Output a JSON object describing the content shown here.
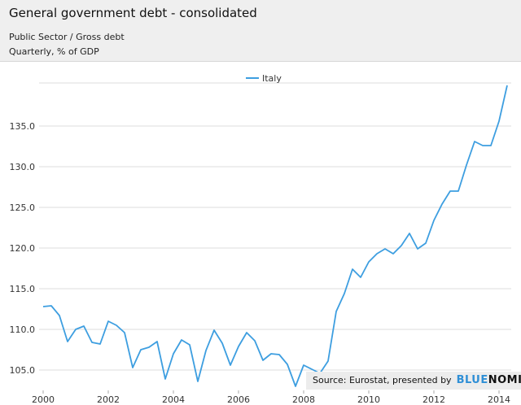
{
  "header": {
    "title": "General government debt - consolidated",
    "subtitle1": "Public Sector / Gross debt",
    "subtitle2": "Quarterly, % of GDP"
  },
  "source": {
    "label": "Source: Eurostat, presented by",
    "brand_a": "BLUE",
    "brand_b": "NOMICS"
  },
  "colors": {
    "series": "#3d9ee0",
    "grid": "#dddddd",
    "brand": "#2f8fd6"
  },
  "chart_data": {
    "type": "line",
    "title": "General government debt - consolidated",
    "xlabel": "",
    "ylabel": "",
    "xlim": [
      1999.875,
      2014.375
    ],
    "ylim": [
      102.5,
      140.0
    ],
    "grid": true,
    "legend_position": "top-center",
    "y_ticks": [
      "105.0",
      "110.0",
      "115.0",
      "120.0",
      "125.0",
      "130.0",
      "135.0"
    ],
    "x_ticks": [
      "2000",
      "2002",
      "2004",
      "2006",
      "2008",
      "2010",
      "2012",
      "2014"
    ],
    "series": [
      {
        "name": "Italy",
        "x": [
          2000.0,
          2000.25,
          2000.5,
          2000.75,
          2001.0,
          2001.25,
          2001.5,
          2001.75,
          2002.0,
          2002.25,
          2002.5,
          2002.75,
          2003.0,
          2003.25,
          2003.5,
          2003.75,
          2004.0,
          2004.25,
          2004.5,
          2004.75,
          2005.0,
          2005.25,
          2005.5,
          2005.75,
          2006.0,
          2006.25,
          2006.5,
          2006.75,
          2007.0,
          2007.25,
          2007.5,
          2007.75,
          2008.0,
          2008.25,
          2008.5,
          2008.75,
          2009.0,
          2009.25,
          2009.5,
          2009.75,
          2010.0,
          2010.25,
          2010.5,
          2010.75,
          2011.0,
          2011.25,
          2011.5,
          2011.75,
          2012.0,
          2012.25,
          2012.5,
          2012.75,
          2013.0,
          2013.25,
          2013.5,
          2013.75,
          2014.0,
          2014.25
        ],
        "values": [
          112.8,
          112.9,
          111.7,
          108.5,
          110.0,
          110.4,
          108.4,
          108.2,
          111.0,
          110.5,
          109.6,
          105.3,
          107.5,
          107.8,
          108.5,
          103.9,
          107.0,
          108.7,
          108.1,
          103.6,
          107.4,
          109.9,
          108.3,
          105.6,
          107.9,
          109.6,
          108.6,
          106.2,
          107.0,
          106.9,
          105.7,
          103.0,
          105.6,
          105.1,
          104.6,
          106.1,
          112.2,
          114.4,
          117.4,
          116.4,
          118.3,
          119.3,
          119.9,
          119.3,
          120.3,
          121.8,
          119.9,
          120.6,
          123.4,
          125.4,
          127.0,
          127.0,
          130.2,
          133.1,
          132.6,
          132.6,
          135.6,
          140.0
        ]
      }
    ]
  }
}
